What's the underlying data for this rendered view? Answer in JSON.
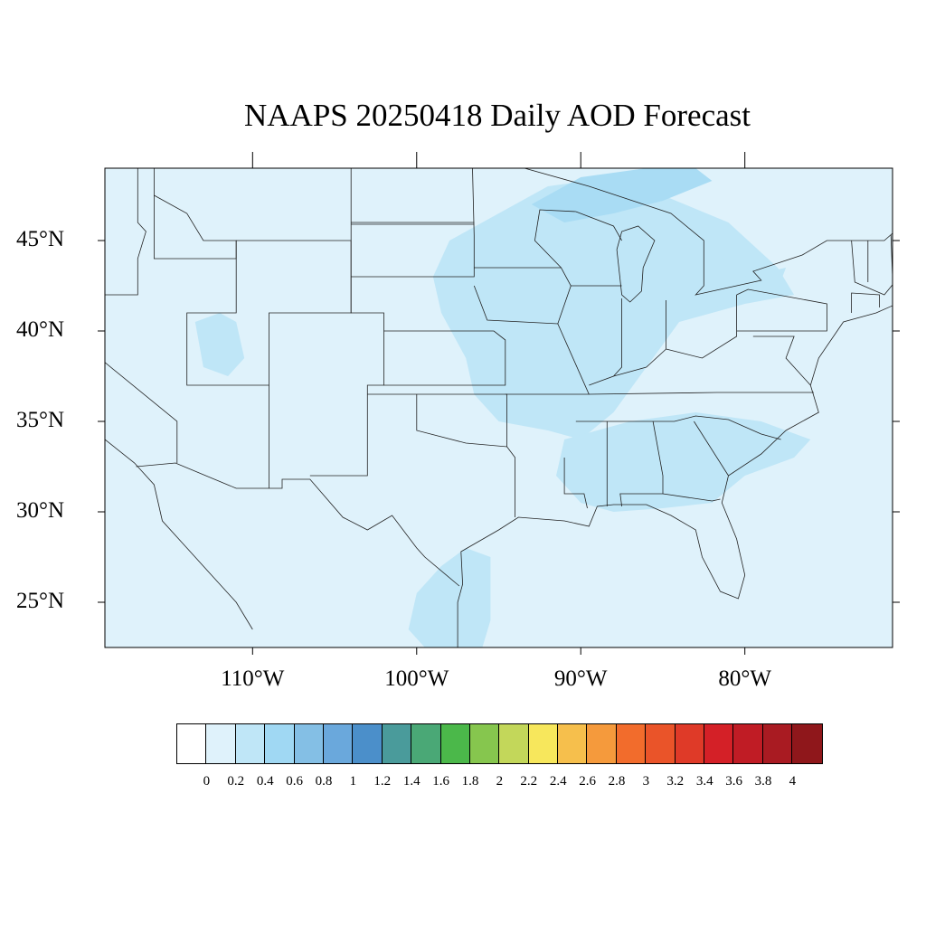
{
  "title": "NAAPS 20250418 Daily AOD Forecast",
  "map": {
    "projection": "lat-lon",
    "lon_range": [
      -119,
      -71
    ],
    "lat_range": [
      22.5,
      49
    ],
    "background_aod_color": "#dff2fb",
    "plume_color": "#bfe6f7",
    "plume_color_strong": "#a9dcf4",
    "outline_color": "#222222",
    "lat_ticks": [
      {
        "label": "45°N",
        "value": 45
      },
      {
        "label": "40°N",
        "value": 40
      },
      {
        "label": "35°N",
        "value": 35
      },
      {
        "label": "30°N",
        "value": 30
      },
      {
        "label": "25°N",
        "value": 25
      }
    ],
    "lon_ticks": [
      {
        "label": "110°W",
        "value": -110
      },
      {
        "label": "100°W",
        "value": -100
      },
      {
        "label": "90°W",
        "value": -90
      },
      {
        "label": "80°W",
        "value": -80
      }
    ]
  },
  "colorbar": {
    "labels": [
      "0",
      "0.2",
      "0.4",
      "0.6",
      "0.8",
      "1",
      "1.2",
      "1.4",
      "1.6",
      "1.8",
      "2",
      "2.2",
      "2.4",
      "2.6",
      "2.8",
      "3",
      "3.2",
      "3.4",
      "3.6",
      "3.8",
      "4"
    ],
    "colors": [
      "#ffffff",
      "#dff2fb",
      "#bfe6f7",
      "#a0d8f3",
      "#84bfe5",
      "#6aa8dc",
      "#4b8fca",
      "#4a9b9b",
      "#4aa876",
      "#4bb84a",
      "#86c64e",
      "#c3d75a",
      "#f7e75c",
      "#f6bf4c",
      "#f59a3c",
      "#f26c2c",
      "#ea5429",
      "#df3a28",
      "#d42027",
      "#c01c25",
      "#a91b22",
      "#8f171b"
    ]
  }
}
